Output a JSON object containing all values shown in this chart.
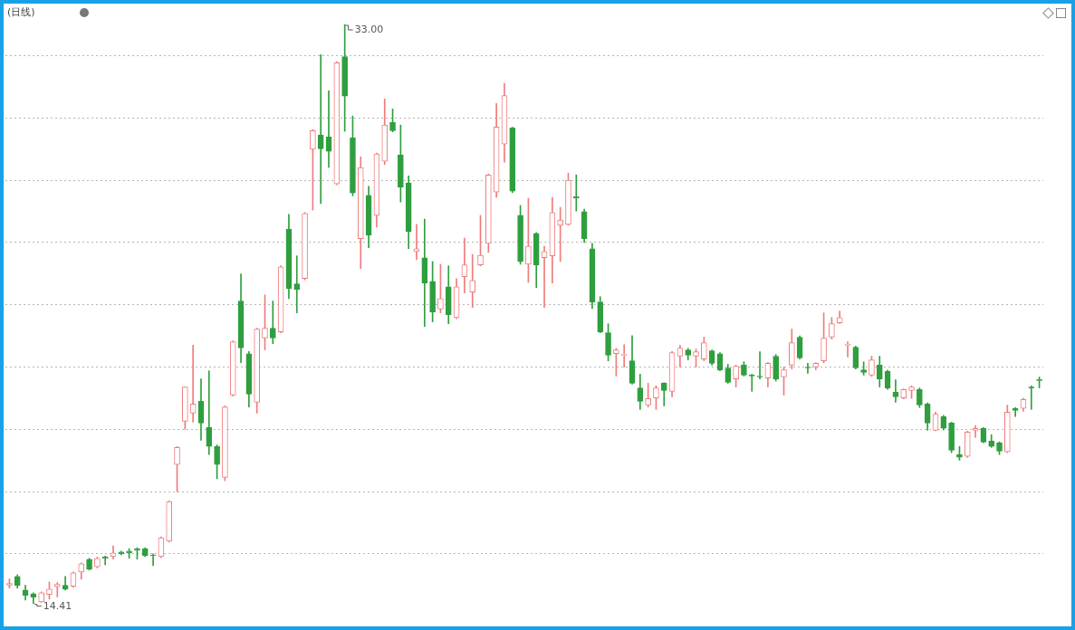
{
  "chart_data": {
    "type": "candlestick",
    "title": "(日线)",
    "categories": [
      null,
      null,
      null,
      null,
      null,
      null,
      null,
      null,
      null,
      null,
      null,
      null,
      null,
      null,
      null,
      null,
      null,
      null,
      null,
      null,
      null,
      null,
      null,
      null,
      null,
      null,
      null,
      null,
      null,
      null,
      null,
      null,
      null,
      null,
      null,
      null,
      null,
      null,
      null,
      null,
      null,
      null,
      null,
      null,
      null,
      null,
      null,
      null,
      null,
      null,
      null,
      null,
      null,
      null,
      null,
      null,
      null,
      null,
      null,
      null,
      null,
      null,
      null,
      null,
      null,
      null,
      null,
      null,
      null,
      null,
      null,
      null,
      null,
      null,
      null,
      null,
      null,
      null,
      null,
      null,
      null,
      null,
      null,
      null,
      null,
      null,
      null,
      null,
      null,
      null,
      null,
      null,
      null,
      null,
      null,
      null,
      null,
      null,
      null,
      null,
      null,
      null,
      null,
      null,
      null,
      null,
      null,
      null,
      null,
      null,
      null,
      null,
      null,
      null,
      null,
      null,
      null,
      null,
      null,
      null,
      null,
      null,
      null,
      null,
      null,
      null,
      null,
      null,
      null,
      null
    ],
    "ohlc": [
      [
        15.0,
        15.2,
        14.9,
        15.05
      ],
      [
        15.28,
        15.33,
        14.9,
        14.99
      ],
      [
        14.84,
        14.99,
        14.52,
        14.67
      ],
      [
        14.72,
        14.75,
        14.41,
        14.61
      ],
      [
        14.46,
        14.78,
        14.44,
        14.75
      ],
      [
        14.7,
        15.1,
        14.55,
        14.87
      ],
      [
        14.95,
        15.08,
        14.62,
        15.02
      ],
      [
        14.99,
        15.28,
        14.84,
        14.87
      ],
      [
        14.96,
        15.42,
        14.93,
        15.39
      ],
      [
        15.42,
        15.71,
        15.19,
        15.68
      ],
      [
        15.83,
        15.86,
        15.48,
        15.51
      ],
      [
        15.59,
        15.9,
        15.55,
        15.86
      ],
      [
        15.9,
        15.93,
        15.65,
        15.86
      ],
      [
        15.91,
        16.26,
        15.83,
        16.03
      ],
      [
        16.06,
        16.09,
        15.97,
        16.0
      ],
      [
        16.09,
        16.17,
        15.86,
        16.03
      ],
      [
        16.17,
        16.2,
        15.83,
        16.12
      ],
      [
        16.17,
        16.2,
        15.91,
        15.94
      ],
      [
        15.97,
        16.0,
        15.62,
        15.94
      ],
      [
        15.91,
        16.55,
        15.88,
        16.52
      ],
      [
        16.41,
        17.7,
        16.38,
        17.68
      ],
      [
        18.87,
        19.45,
        18.0,
        19.42
      ],
      [
        20.26,
        21.36,
        20.0,
        21.36
      ],
      [
        20.52,
        22.7,
        20.23,
        20.81
      ],
      [
        20.9,
        21.62,
        19.65,
        20.2
      ],
      [
        20.06,
        21.88,
        19.19,
        19.45
      ],
      [
        19.45,
        19.5,
        18.41,
        18.87
      ],
      [
        18.46,
        20.75,
        18.35,
        20.72
      ],
      [
        21.1,
        22.84,
        21.07,
        22.81
      ],
      [
        24.12,
        24.99,
        22.14,
        22.61
      ],
      [
        22.43,
        22.5,
        20.72,
        21.13
      ],
      [
        20.87,
        23.25,
        20.52,
        23.22
      ],
      [
        22.93,
        24.32,
        22.55,
        23.25
      ],
      [
        23.25,
        24.12,
        22.75,
        22.93
      ],
      [
        23.13,
        25.25,
        23.1,
        25.22
      ],
      [
        26.43,
        26.9,
        24.2,
        24.52
      ],
      [
        24.67,
        25.57,
        23.74,
        24.49
      ],
      [
        24.84,
        26.96,
        24.8,
        26.93
      ],
      [
        28.99,
        29.62,
        27.04,
        29.59
      ],
      [
        29.45,
        32.03,
        27.25,
        29.01
      ],
      [
        29.39,
        30.87,
        28.41,
        28.93
      ],
      [
        27.88,
        31.8,
        27.85,
        31.77
      ],
      [
        31.97,
        33.0,
        29.57,
        30.7
      ],
      [
        29.36,
        30.06,
        27.5,
        27.59
      ],
      [
        26.12,
        28.75,
        25.16,
        28.41
      ],
      [
        27.51,
        27.8,
        25.83,
        26.23
      ],
      [
        26.87,
        28.87,
        26.49,
        28.84
      ],
      [
        28.61,
        30.61,
        28.5,
        29.77
      ],
      [
        29.86,
        30.29,
        29.55,
        29.59
      ],
      [
        28.81,
        29.77,
        27.3,
        27.77
      ],
      [
        27.91,
        28.14,
        25.8,
        26.35
      ],
      [
        25.71,
        26.58,
        25.45,
        25.8
      ],
      [
        25.51,
        26.75,
        23.3,
        24.7
      ],
      [
        24.75,
        25.39,
        23.45,
        23.77
      ],
      [
        23.86,
        25.3,
        23.74,
        24.2
      ],
      [
        24.58,
        25.25,
        23.39,
        23.68
      ],
      [
        23.59,
        24.84,
        23.55,
        24.58
      ],
      [
        24.9,
        26.14,
        24.38,
        25.28
      ],
      [
        24.41,
        25.62,
        23.91,
        24.78
      ],
      [
        25.28,
        26.87,
        25.25,
        25.59
      ],
      [
        25.97,
        28.2,
        25.68,
        28.17
      ],
      [
        27.62,
        30.46,
        27.45,
        29.71
      ],
      [
        29.16,
        31.1,
        28.58,
        30.72
      ],
      [
        29.68,
        29.7,
        27.6,
        27.65
      ],
      [
        26.87,
        27.19,
        25.3,
        25.39
      ],
      [
        25.3,
        27.42,
        24.72,
        25.88
      ],
      [
        26.29,
        26.32,
        24.55,
        25.28
      ],
      [
        25.51,
        25.88,
        23.91,
        25.71
      ],
      [
        25.57,
        27.45,
        24.7,
        26.96
      ],
      [
        26.55,
        27.13,
        25.39,
        26.72
      ],
      [
        26.58,
        28.23,
        26.55,
        28.0
      ],
      [
        27.48,
        28.17,
        27.01,
        27.42
      ],
      [
        26.99,
        27.07,
        26.0,
        26.12
      ],
      [
        25.8,
        25.97,
        23.88,
        24.09
      ],
      [
        24.09,
        24.26,
        23.1,
        23.13
      ],
      [
        23.1,
        23.39,
        22.2,
        22.38
      ],
      [
        22.43,
        22.6,
        21.71,
        22.55
      ],
      [
        22.38,
        22.72,
        22.0,
        22.41
      ],
      [
        22.2,
        23.01,
        21.45,
        21.48
      ],
      [
        21.33,
        21.77,
        20.64,
        20.9
      ],
      [
        20.78,
        21.48,
        20.72,
        20.99
      ],
      [
        21.01,
        21.4,
        20.64,
        21.33
      ],
      [
        21.48,
        21.5,
        20.75,
        21.25
      ],
      [
        21.22,
        22.5,
        21.04,
        22.46
      ],
      [
        22.35,
        22.7,
        22.0,
        22.61
      ],
      [
        22.55,
        22.6,
        22.23,
        22.38
      ],
      [
        22.35,
        22.58,
        22.0,
        22.49
      ],
      [
        22.26,
        22.96,
        22.2,
        22.78
      ],
      [
        22.52,
        22.55,
        22.06,
        22.12
      ],
      [
        22.43,
        22.46,
        21.88,
        21.91
      ],
      [
        21.97,
        22.09,
        21.48,
        21.51
      ],
      [
        21.62,
        22.06,
        21.36,
        22.03
      ],
      [
        22.06,
        22.17,
        21.71,
        21.74
      ],
      [
        21.74,
        21.77,
        21.22,
        21.71
      ],
      [
        21.71,
        22.49,
        21.62,
        21.68
      ],
      [
        21.65,
        22.15,
        21.36,
        22.12
      ],
      [
        22.35,
        22.4,
        21.55,
        21.62
      ],
      [
        21.68,
        22.0,
        21.1,
        21.91
      ],
      [
        22.06,
        23.22,
        21.94,
        22.78
      ],
      [
        22.96,
        23.0,
        22.26,
        22.29
      ],
      [
        21.99,
        22.12,
        21.8,
        21.97
      ],
      [
        22.0,
        22.14,
        21.91,
        22.12
      ],
      [
        22.2,
        23.74,
        22.14,
        22.93
      ],
      [
        22.96,
        23.59,
        22.9,
        23.39
      ],
      [
        23.42,
        23.8,
        23.4,
        23.59
      ],
      [
        22.7,
        22.81,
        22.32,
        22.73
      ],
      [
        22.64,
        22.67,
        21.94,
        21.97
      ],
      [
        21.91,
        22.17,
        21.74,
        21.83
      ],
      [
        21.74,
        22.35,
        21.7,
        22.23
      ],
      [
        22.06,
        22.35,
        21.36,
        21.62
      ],
      [
        21.86,
        21.9,
        21.28,
        21.33
      ],
      [
        21.19,
        21.59,
        20.87,
        21.04
      ],
      [
        21.01,
        21.3,
        20.98,
        21.28
      ],
      [
        21.25,
        21.4,
        20.99,
        21.36
      ],
      [
        21.28,
        21.33,
        20.7,
        20.78
      ],
      [
        20.81,
        20.85,
        19.97,
        20.2
      ],
      [
        19.97,
        20.55,
        19.95,
        20.49
      ],
      [
        20.41,
        20.45,
        19.98,
        20.03
      ],
      [
        20.2,
        20.23,
        19.25,
        19.33
      ],
      [
        19.19,
        19.45,
        19.01,
        19.1
      ],
      [
        19.13,
        19.94,
        19.1,
        19.91
      ],
      [
        19.97,
        20.12,
        19.74,
        20.03
      ],
      [
        20.03,
        20.06,
        19.57,
        19.59
      ],
      [
        19.62,
        19.83,
        19.42,
        19.45
      ],
      [
        19.57,
        19.6,
        19.19,
        19.3
      ],
      [
        19.28,
        20.78,
        19.25,
        20.55
      ],
      [
        20.67,
        20.7,
        20.41,
        20.61
      ],
      [
        20.67,
        21.0,
        20.58,
        20.96
      ],
      [
        21.36,
        21.4,
        20.64,
        21.33
      ],
      [
        21.59,
        21.68,
        21.33,
        21.57
      ]
    ],
    "colors": [
      "#f07c7c",
      "#2f9e3f",
      "#2f9e3f",
      "#2f9e3f",
      "#f07c7c",
      "#f07c7c",
      "#f07c7c",
      "#2f9e3f",
      "#f07c7c",
      "#f07c7c",
      "#2f9e3f",
      "#f07c7c",
      "#2f9e3f",
      "#f07c7c",
      "#2f9e3f",
      "#2f9e3f",
      "#2f9e3f",
      "#2f9e3f",
      "#2f9e3f",
      "#f07c7c",
      "#f07c7c",
      "#f07c7c",
      "#f07c7c",
      "#f07c7c",
      "#2f9e3f",
      "#2f9e3f",
      "#2f9e3f",
      "#f07c7c",
      "#f07c7c",
      "#2f9e3f",
      "#2f9e3f",
      "#f07c7c",
      "#f07c7c",
      "#2f9e3f",
      "#f07c7c",
      "#2f9e3f",
      "#2f9e3f",
      "#f07c7c",
      "#f07c7c",
      "#2f9e3f",
      "#2f9e3f",
      "#f07c7c",
      "#2f9e3f",
      "#2f9e3f",
      "#f07c7c",
      "#2f9e3f",
      "#f07c7c",
      "#f07c7c",
      "#2f9e3f",
      "#2f9e3f",
      "#2f9e3f",
      "#f07c7c",
      "#2f9e3f",
      "#2f9e3f",
      "#f07c7c",
      "#2f9e3f",
      "#f07c7c",
      "#f07c7c",
      "#f07c7c",
      "#f07c7c",
      "#f07c7c",
      "#f07c7c",
      "#f07c7c",
      "#2f9e3f",
      "#2f9e3f",
      "#f07c7c",
      "#2f9e3f",
      "#f07c7c",
      "#f07c7c",
      "#f07c7c",
      "#f07c7c",
      "#2f9e3f",
      "#2f9e3f",
      "#2f9e3f",
      "#2f9e3f",
      "#2f9e3f",
      "#f07c7c",
      "#f07c7c",
      "#2f9e3f",
      "#2f9e3f",
      "#f07c7c",
      "#f07c7c",
      "#2f9e3f",
      "#f07c7c",
      "#f07c7c",
      "#2f9e3f",
      "#f07c7c",
      "#f07c7c",
      "#2f9e3f",
      "#2f9e3f",
      "#2f9e3f",
      "#f07c7c",
      "#2f9e3f",
      "#2f9e3f",
      "#2f9e3f",
      "#f07c7c",
      "#2f9e3f",
      "#f07c7c",
      "#f07c7c",
      "#2f9e3f",
      "#2f9e3f",
      "#f07c7c",
      "#f07c7c",
      "#f07c7c",
      "#f07c7c",
      "#f07c7c",
      "#2f9e3f",
      "#2f9e3f",
      "#f07c7c",
      "#2f9e3f",
      "#2f9e3f",
      "#2f9e3f",
      "#f07c7c",
      "#f07c7c",
      "#2f9e3f",
      "#2f9e3f",
      "#f07c7c",
      "#2f9e3f",
      "#2f9e3f",
      "#2f9e3f",
      "#f07c7c",
      "#f07c7c",
      "#2f9e3f",
      "#2f9e3f",
      "#2f9e3f",
      "#f07c7c",
      "#2f9e3f",
      "#f07c7c",
      "#2f9e3f",
      "#2f9e3f"
    ],
    "yticks": [
      {
        "value": 16,
        "label": null
      },
      {
        "value": 18,
        "label": null
      },
      {
        "value": 20,
        "label": null
      },
      {
        "value": 22,
        "label": null
      },
      {
        "value": 24,
        "label": null
      },
      {
        "value": 26,
        "label": null
      },
      {
        "value": 28,
        "label": null
      },
      {
        "value": 30,
        "label": null
      },
      {
        "value": 32,
        "label": null
      }
    ],
    "grid": "y",
    "tick_labels": false,
    "legend": false,
    "annotations": [
      "33.00",
      "14.41"
    ]
  }
}
